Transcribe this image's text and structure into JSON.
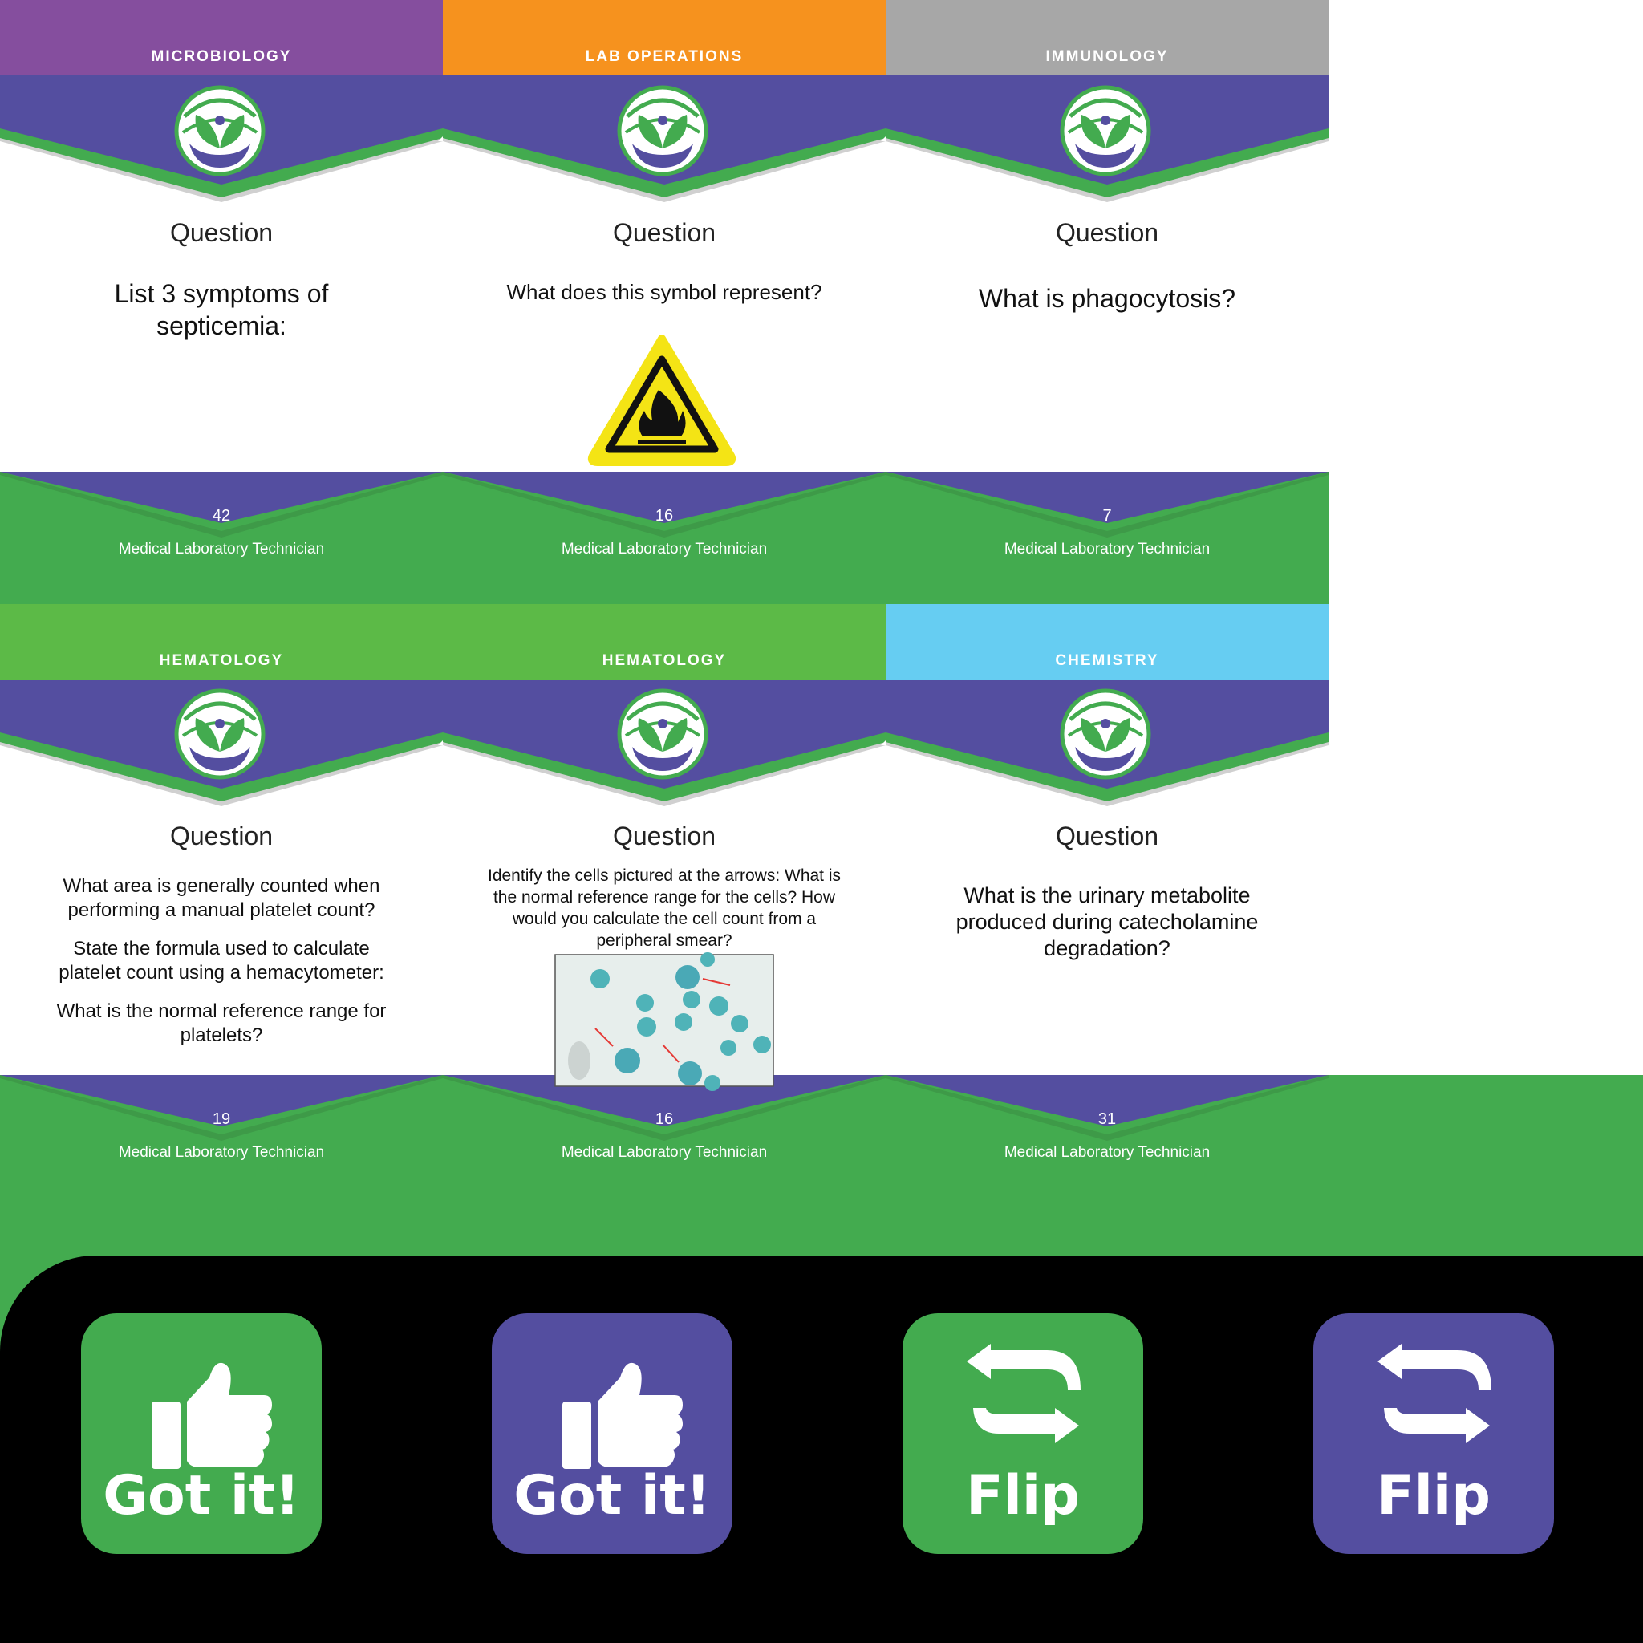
{
  "colors": {
    "purple": "#544ea0",
    "green": "#43ab4f",
    "black": "#000000",
    "microbiology": "#854e9e",
    "lab_operations": "#f6921e",
    "immunology": "#a7a7a7",
    "hematology": "#5cba47",
    "chemistry": "#66cdf2"
  },
  "cards": [
    {
      "category": "MICROBIOLOGY",
      "heading": "Question",
      "text": [
        "List 3 symptoms of septicemia:"
      ],
      "number": "42",
      "footer": "Medical Laboratory Technician",
      "image": "logo-icon"
    },
    {
      "category": "LAB OPERATIONS",
      "heading": "Question",
      "text": [
        "What does this symbol represent?"
      ],
      "number": "16",
      "footer": "Medical Laboratory Technician",
      "image": "flammable-hazard-icon"
    },
    {
      "category": "IMMUNOLOGY",
      "heading": "Question",
      "text": [
        "What is phagocytosis?"
      ],
      "number": "7",
      "footer": "Medical Laboratory Technician",
      "image": "logo-icon"
    },
    {
      "category": "HEMATOLOGY",
      "heading": "Question",
      "text": [
        "What area is generally counted when performing a manual platelet count?",
        "State the formula used to calculate platelet count using a hemacytometer:",
        "What is the normal reference range for platelets?"
      ],
      "number": "19",
      "footer": "Medical Laboratory Technician",
      "image": "logo-icon"
    },
    {
      "category": "HEMATOLOGY",
      "heading": "Question",
      "text": [
        "Identify the cells pictured at the arrows: What is the normal reference range for the cells? How would you calculate the cell count from a peripheral smear?"
      ],
      "number": "16",
      "footer": "Medical Laboratory Technician",
      "image": "blood-smear-micrograph"
    },
    {
      "category": "CHEMISTRY",
      "heading": "Question",
      "text": [
        "What is the urinary metabolite produced during catecholamine degradation?"
      ],
      "number": "31",
      "footer": "Medical Laboratory Technician",
      "image": "logo-icon"
    }
  ],
  "buttons": [
    {
      "label": "Got it!",
      "icon": "thumbs-up-icon",
      "color": "#43ab4f"
    },
    {
      "label": "Got it!",
      "icon": "thumbs-up-icon",
      "color": "#544ea0"
    },
    {
      "label": "Flip",
      "icon": "flip-arrows-icon",
      "color": "#43ab4f"
    },
    {
      "label": "Flip",
      "icon": "flip-arrows-icon",
      "color": "#544ea0"
    }
  ]
}
